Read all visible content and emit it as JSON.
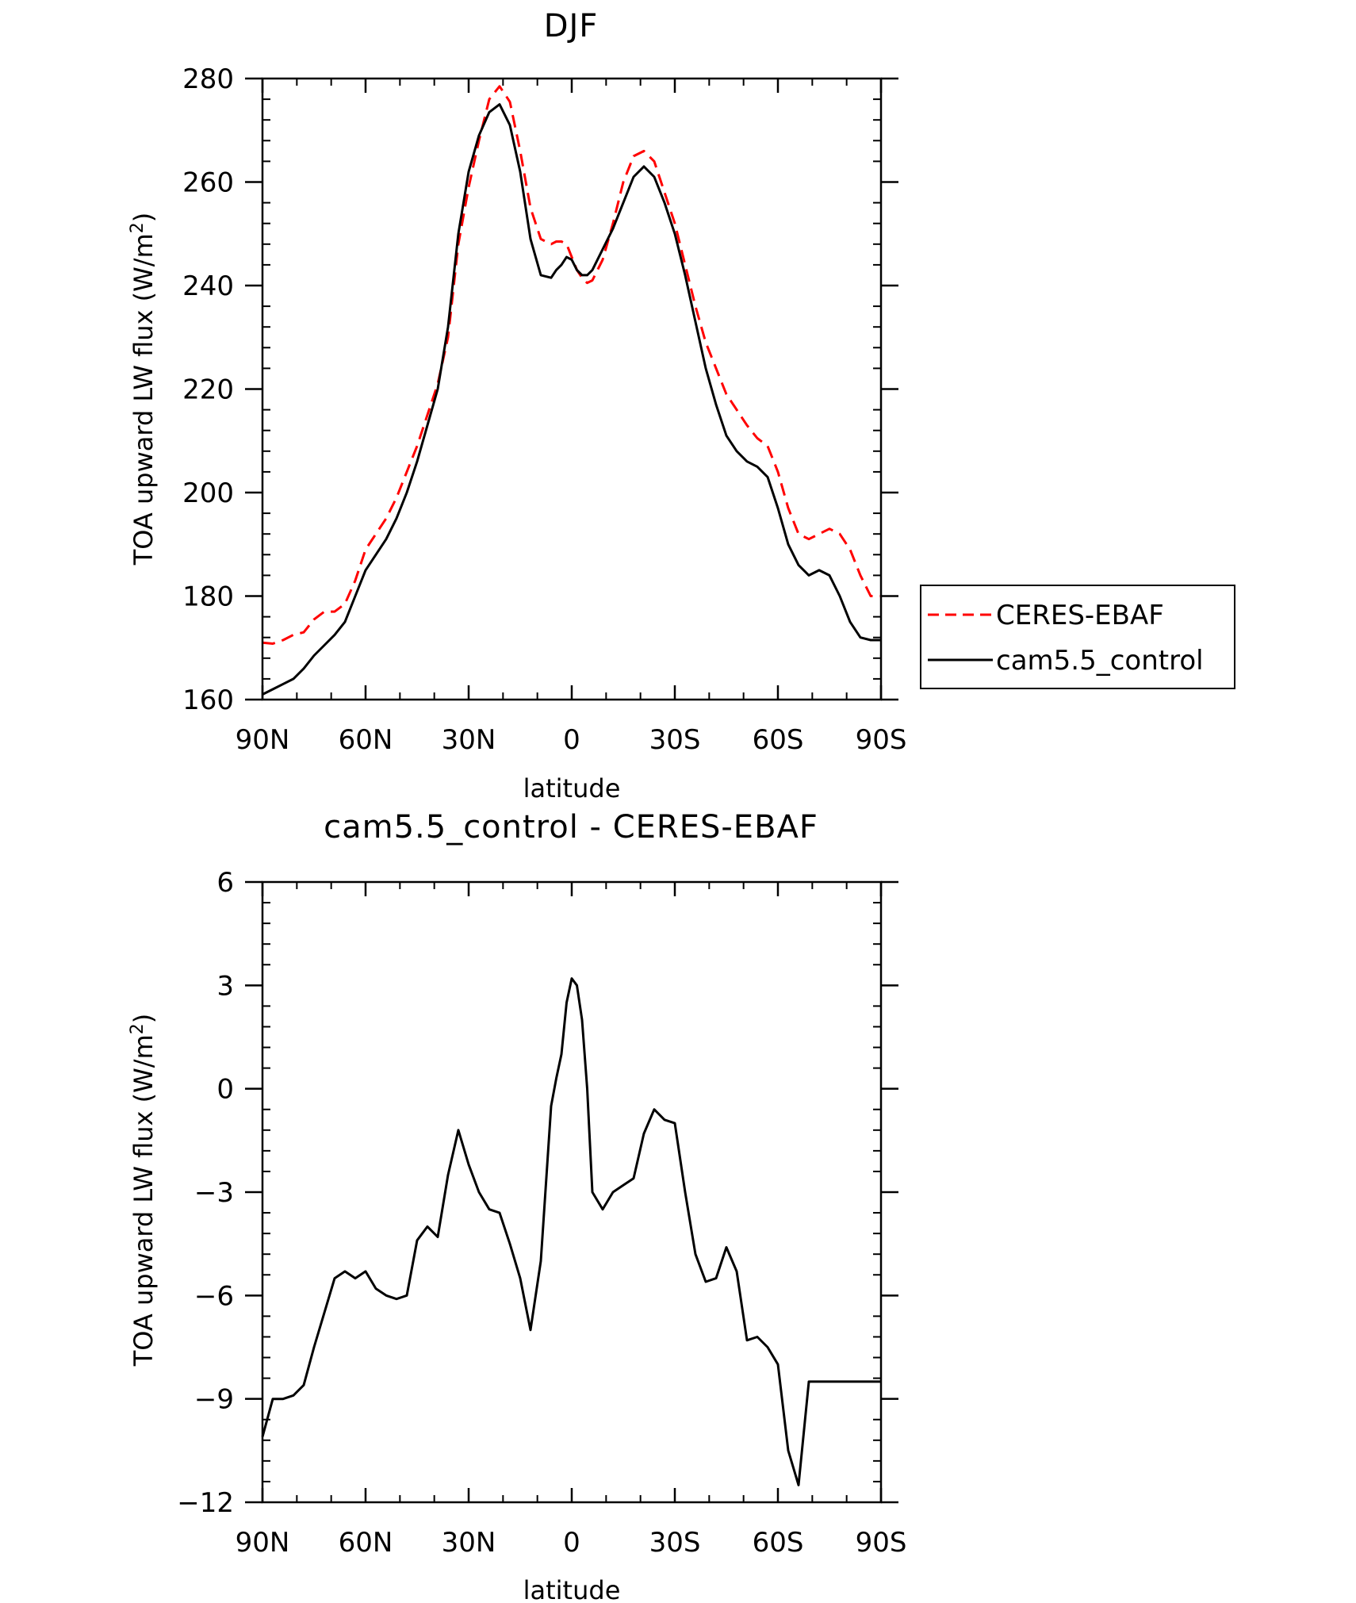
{
  "chart_data": [
    {
      "type": "line",
      "title": "DJF",
      "xlabel": "latitude",
      "ylabel": "TOA upward LW flux (W/m",
      "ylabel_sup": "2",
      "ylabel_end": ")",
      "xlim": [
        90,
        -90
      ],
      "ylim": [
        160,
        280
      ],
      "x_ticks": [
        90,
        60,
        30,
        0,
        -30,
        -60,
        -90
      ],
      "x_tick_labels": [
        "90N",
        "60N",
        "30N",
        "0",
        "30S",
        "60S",
        "90S"
      ],
      "y_ticks": [
        160,
        180,
        200,
        220,
        240,
        260,
        280
      ],
      "y_tick_labels": [
        "160",
        "180",
        "200",
        "220",
        "240",
        "260",
        "280"
      ],
      "legend": {
        "placement": "right",
        "entries": [
          "CERES-EBAF",
          "cam5.5_control"
        ]
      },
      "series": [
        {
          "name": "CERES-EBAF",
          "color": "#ff0000",
          "dash": "dashed",
          "x": [
            90,
            87,
            84,
            81,
            78,
            75,
            72,
            69,
            66,
            63,
            60,
            57,
            54,
            51,
            48,
            45,
            42,
            39,
            36,
            33,
            30,
            27,
            24,
            21,
            18,
            15,
            12,
            9,
            6,
            4.5,
            3,
            1.5,
            0,
            -1.5,
            -3,
            -4.5,
            -6,
            -9,
            -12,
            -15,
            -18,
            -21,
            -24,
            -27,
            -30,
            -33,
            -36,
            -39,
            -42,
            -45,
            -48,
            -51,
            -54,
            -57,
            -60,
            -63,
            -66,
            -69,
            -72,
            -75,
            -78,
            -81,
            -84,
            -87,
            -90
          ],
          "y": [
            171,
            170.8,
            171.5,
            172.5,
            173,
            175.5,
            177,
            177,
            178.5,
            183,
            189,
            192,
            195,
            199,
            204,
            209,
            215,
            221,
            230,
            248,
            259,
            268,
            276,
            278.5,
            275.5,
            266,
            255,
            249,
            248,
            248.5,
            248.5,
            248,
            245.5,
            243,
            241.5,
            240.5,
            241,
            245,
            252,
            260,
            265,
            266,
            264,
            258,
            252,
            244,
            236,
            229,
            224,
            219,
            216,
            213,
            210.5,
            209,
            204,
            197,
            192,
            191,
            192,
            193,
            192,
            189,
            184,
            180,
            180
          ]
        },
        {
          "name": "cam5.5_control",
          "color": "#000000",
          "dash": "solid",
          "x": [
            90,
            87,
            84,
            81,
            78,
            75,
            72,
            69,
            66,
            63,
            60,
            57,
            54,
            51,
            48,
            45,
            42,
            39,
            36,
            33,
            30,
            27,
            24,
            21,
            18,
            15,
            12,
            9,
            6,
            4.5,
            3,
            1.5,
            0,
            -1.5,
            -3,
            -4.5,
            -6,
            -9,
            -12,
            -15,
            -18,
            -21,
            -24,
            -27,
            -30,
            -33,
            -36,
            -39,
            -42,
            -45,
            -48,
            -51,
            -54,
            -57,
            -60,
            -63,
            -66,
            -69,
            -72,
            -75,
            -78,
            -81,
            -84,
            -87,
            -90
          ],
          "y": [
            161,
            162,
            163,
            164,
            166,
            168.5,
            170.5,
            172.5,
            175,
            180,
            185,
            188,
            191,
            195,
            200,
            206,
            213,
            220,
            232,
            250,
            262,
            269,
            273.5,
            275,
            271,
            262,
            249,
            242,
            241.5,
            243,
            244,
            245.5,
            245,
            243,
            242,
            242,
            243,
            247,
            251,
            256,
            261,
            263,
            261,
            256,
            250,
            242,
            233,
            224,
            217,
            211,
            208,
            206,
            205,
            203,
            197,
            190,
            186,
            184,
            185,
            184,
            180,
            175,
            172,
            171.5,
            171.5
          ]
        }
      ]
    },
    {
      "type": "line",
      "title": "cam5.5_control - CERES-EBAF",
      "xlabel": "latitude",
      "ylabel": "TOA upward LW flux (W/m",
      "ylabel_sup": "2",
      "ylabel_end": ")",
      "xlim": [
        90,
        -90
      ],
      "ylim": [
        -12,
        6
      ],
      "x_ticks": [
        90,
        60,
        30,
        0,
        -30,
        -60,
        -90
      ],
      "x_tick_labels": [
        "90N",
        "60N",
        "30N",
        "0",
        "30S",
        "60S",
        "90S"
      ],
      "y_ticks": [
        -12,
        -9,
        -6,
        -3,
        0,
        3,
        6
      ],
      "y_tick_labels": [
        "−12",
        "−9",
        "−6",
        "−3",
        "0",
        "3",
        "6"
      ],
      "series": [
        {
          "name": "cam5.5_control - CERES-EBAF",
          "color": "#000000",
          "dash": "solid",
          "x": [
            90,
            87,
            84,
            81,
            78,
            75,
            72,
            69,
            66,
            63,
            60,
            57,
            54,
            51,
            48,
            45,
            42,
            39,
            36,
            33,
            30,
            27,
            24,
            21,
            18,
            15,
            12,
            9,
            6,
            4.5,
            3,
            1.5,
            0,
            -1.5,
            -3,
            -4.5,
            -6,
            -9,
            -12,
            -15,
            -18,
            -21,
            -24,
            -27,
            -30,
            -33,
            -36,
            -39,
            -42,
            -45,
            -48,
            -51,
            -54,
            -57,
            -60,
            -63,
            -66,
            -69,
            -72,
            -75,
            -78,
            -81,
            -84,
            -87,
            -90
          ],
          "y": [
            -10.1,
            -9,
            -9,
            -8.9,
            -8.6,
            -7.5,
            -6.5,
            -5.5,
            -5.3,
            -5.5,
            -5.3,
            -5.8,
            -6,
            -6.1,
            -6,
            -4.4,
            -4,
            -4.3,
            -2.5,
            -1.2,
            -2.2,
            -3,
            -3.5,
            -3.6,
            -4.5,
            -5.5,
            -7,
            -5,
            -0.5,
            0.3,
            1,
            2.5,
            3.2,
            3,
            2,
            0,
            -3,
            -3.5,
            -3,
            -2.8,
            -2.6,
            -1.3,
            -0.6,
            -0.9,
            -1,
            -3,
            -4.8,
            -5.6,
            -5.5,
            -4.6,
            -5.3,
            -7.3,
            -7.2,
            -7.5,
            -8,
            -10.5,
            -11.5,
            -8.5,
            -8.5,
            -8.5,
            -8.5,
            -8.5,
            -8.5,
            -8.5,
            -8.5
          ]
        }
      ]
    }
  ]
}
